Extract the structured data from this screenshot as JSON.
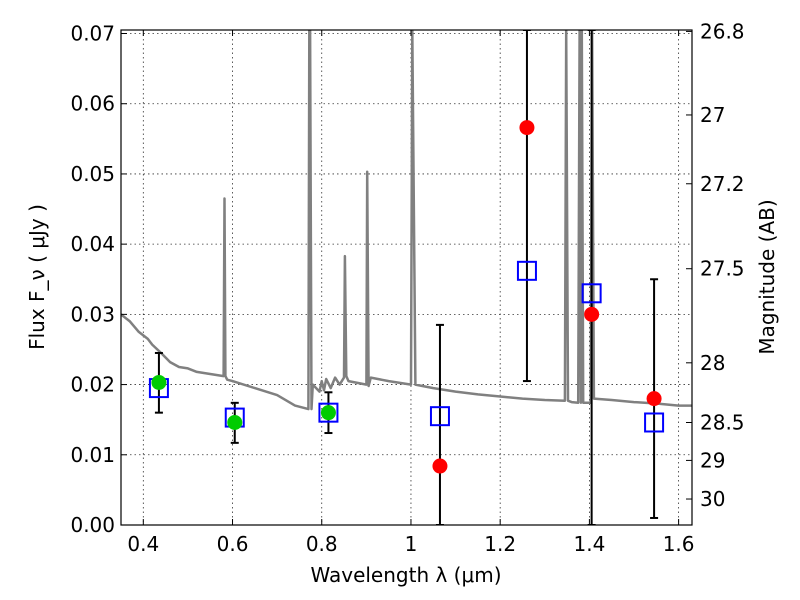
{
  "chart_data": {
    "type": "scatter",
    "xlabel": "Wavelength  λ (μm)",
    "ylabel": "Flux  F_ν  ( μJy )",
    "ylabel_right": "Magnitude (AB)",
    "xlim": [
      0.35,
      1.63
    ],
    "ylim": [
      0.0,
      0.0705
    ],
    "x_ticks": [
      0.4,
      0.6,
      0.8,
      1.0,
      1.2,
      1.4,
      1.6
    ],
    "x_tick_labels": [
      "0.4",
      "0.6",
      "0.8",
      "1",
      "1.2",
      "1.4",
      "1.6"
    ],
    "y_ticks": [
      0.0,
      0.01,
      0.02,
      0.03,
      0.04,
      0.05,
      0.06,
      0.07
    ],
    "y_tick_labels": [
      "0.00",
      "0.01",
      "0.02",
      "0.03",
      "0.04",
      "0.05",
      "0.06",
      "0.07"
    ],
    "right_ticks": [
      {
        "label": "26.8",
        "flux": 0.0703
      },
      {
        "label": "27",
        "flux": 0.0584
      },
      {
        "label": "27.2",
        "flux": 0.0486
      },
      {
        "label": "27.5",
        "flux": 0.0365
      },
      {
        "label": "28",
        "flux": 0.0231
      },
      {
        "label": "28.5",
        "flux": 0.0146
      },
      {
        "label": "29",
        "flux": 0.0092
      },
      {
        "label": "30",
        "flux": 0.0037
      }
    ],
    "grid": true,
    "colors": {
      "detection": "#00cc00",
      "limit": "#ff0000",
      "model": "#0000ff",
      "sed": "#808080"
    },
    "sed_model": {
      "x": [
        0.35,
        0.37,
        0.39,
        0.41,
        0.42,
        0.44,
        0.46,
        0.48,
        0.5,
        0.52,
        0.55,
        0.58,
        0.582,
        0.584,
        0.588,
        0.6,
        0.65,
        0.7,
        0.74,
        0.77,
        0.772,
        0.774,
        0.777,
        0.78,
        0.795,
        0.8,
        0.805,
        0.81,
        0.82,
        0.83,
        0.84,
        0.85,
        0.852,
        0.855,
        0.86,
        0.9,
        0.902,
        0.905,
        0.91,
        0.95,
        1.0,
        1.003,
        1.01,
        1.05,
        1.1,
        1.15,
        1.2,
        1.25,
        1.3,
        1.345,
        1.348,
        1.352,
        1.36,
        1.375,
        1.378,
        1.381,
        1.383,
        1.386,
        1.389,
        1.395,
        1.403,
        1.406,
        1.41,
        1.45,
        1.5,
        1.55,
        1.6,
        1.63
      ],
      "y": [
        0.03,
        0.029,
        0.0275,
        0.0265,
        0.0257,
        0.0245,
        0.0232,
        0.0225,
        0.0223,
        0.0218,
        0.0215,
        0.0212,
        0.0465,
        0.0212,
        0.0207,
        0.0205,
        0.0195,
        0.0185,
        0.017,
        0.0165,
        0.0705,
        0.0705,
        0.0165,
        0.02,
        0.019,
        0.0205,
        0.0192,
        0.0208,
        0.0195,
        0.021,
        0.02,
        0.021,
        0.0383,
        0.0212,
        0.0205,
        0.02,
        0.0503,
        0.0198,
        0.021,
        0.0205,
        0.02,
        0.0705,
        0.02,
        0.0195,
        0.019,
        0.0186,
        0.0183,
        0.018,
        0.0178,
        0.0177,
        0.0705,
        0.0177,
        0.0175,
        0.0174,
        0.0705,
        0.0174,
        0.0705,
        0.0174,
        0.0174,
        0.0174,
        0.0174,
        0.0705,
        0.018,
        0.0178,
        0.0175,
        0.0173,
        0.017,
        0.017
      ]
    },
    "detections": [
      {
        "x": 0.435,
        "y": 0.0203,
        "err_low": 0.016,
        "err_high": 0.0245
      },
      {
        "x": 0.605,
        "y": 0.0146,
        "err_low": 0.0117,
        "err_high": 0.0174
      },
      {
        "x": 0.815,
        "y": 0.016,
        "err_low": 0.0131,
        "err_high": 0.0189
      }
    ],
    "limits": [
      {
        "x": 1.065,
        "y": 0.0084,
        "err_low": 0.0,
        "err_high": 0.0285
      },
      {
        "x": 1.26,
        "y": 0.0566,
        "err_low": 0.0205,
        "err_high": 0.0705
      },
      {
        "x": 1.405,
        "y": 0.03,
        "err_low": 0.0,
        "err_high": 0.0705
      },
      {
        "x": 1.545,
        "y": 0.018,
        "err_low": 0.001,
        "err_high": 0.035
      }
    ],
    "model_points": [
      {
        "x": 0.435,
        "y": 0.0195
      },
      {
        "x": 0.605,
        "y": 0.0153
      },
      {
        "x": 0.815,
        "y": 0.016
      },
      {
        "x": 1.065,
        "y": 0.0155
      },
      {
        "x": 1.26,
        "y": 0.0362
      },
      {
        "x": 1.405,
        "y": 0.033
      },
      {
        "x": 1.545,
        "y": 0.0146
      }
    ]
  }
}
